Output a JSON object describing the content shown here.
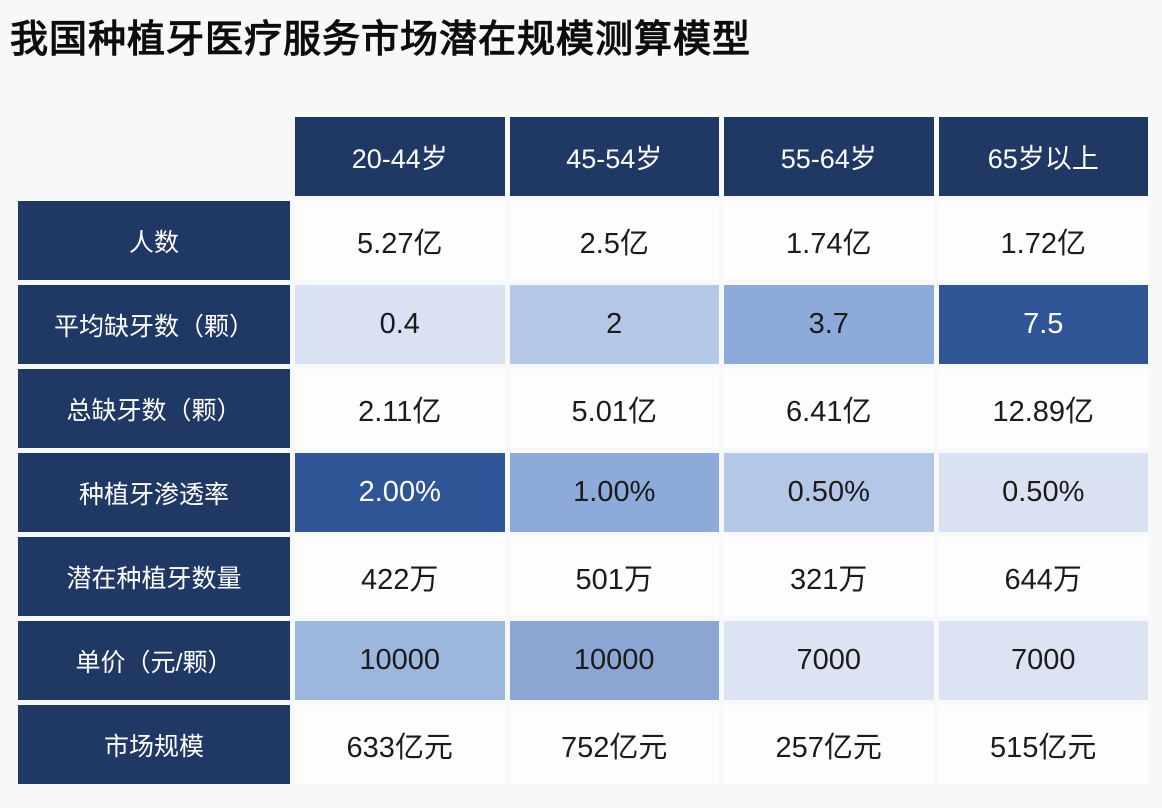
{
  "title": "我国种植牙医疗服务市场潜在规模测算模型",
  "colors": {
    "header_navy": "#1F3864",
    "heat_dark": "#2F5597",
    "heat_medium": "#8EAADB",
    "heat_light": "#B4C7E7",
    "heat_xlight": "#D9E1F2",
    "cell_white": "#FDFDFE",
    "page_bg": "#F7F8FA",
    "text_dark": "#1B1B1B",
    "text_white": "#FFFFFF"
  },
  "chart_data": {
    "type": "table",
    "title": "我国种植牙医疗服务市场潜在规模测算模型",
    "columns": [
      "20-44岁",
      "45-54岁",
      "55-64岁",
      "65岁以上"
    ],
    "rows": [
      {
        "label": "人数",
        "values": [
          "5.27亿",
          "2.5亿",
          "1.74亿",
          "1.72亿"
        ]
      },
      {
        "label": "平均缺牙数（颗）",
        "values": [
          "0.4",
          "2",
          "3.7",
          "7.5"
        ]
      },
      {
        "label": "总缺牙数（颗）",
        "values": [
          "2.11亿",
          "5.01亿",
          "6.41亿",
          "12.89亿"
        ]
      },
      {
        "label": "种植牙渗透率",
        "values": [
          "2.00%",
          "1.00%",
          "0.50%",
          "0.50%"
        ]
      },
      {
        "label": "潜在种植牙数量",
        "values": [
          "422万",
          "501万",
          "321万",
          "644万"
        ]
      },
      {
        "label": "单价（元/颗）",
        "values": [
          "10000",
          "10000",
          "7000",
          "7000"
        ]
      },
      {
        "label": "市场规模",
        "values": [
          "633亿元",
          "752亿元",
          "257亿元",
          "515亿元"
        ]
      }
    ],
    "heat_note": "rows 平均缺牙数 and 种植牙渗透率 and 单价 use blue heat shading; darker = higher relative value"
  }
}
